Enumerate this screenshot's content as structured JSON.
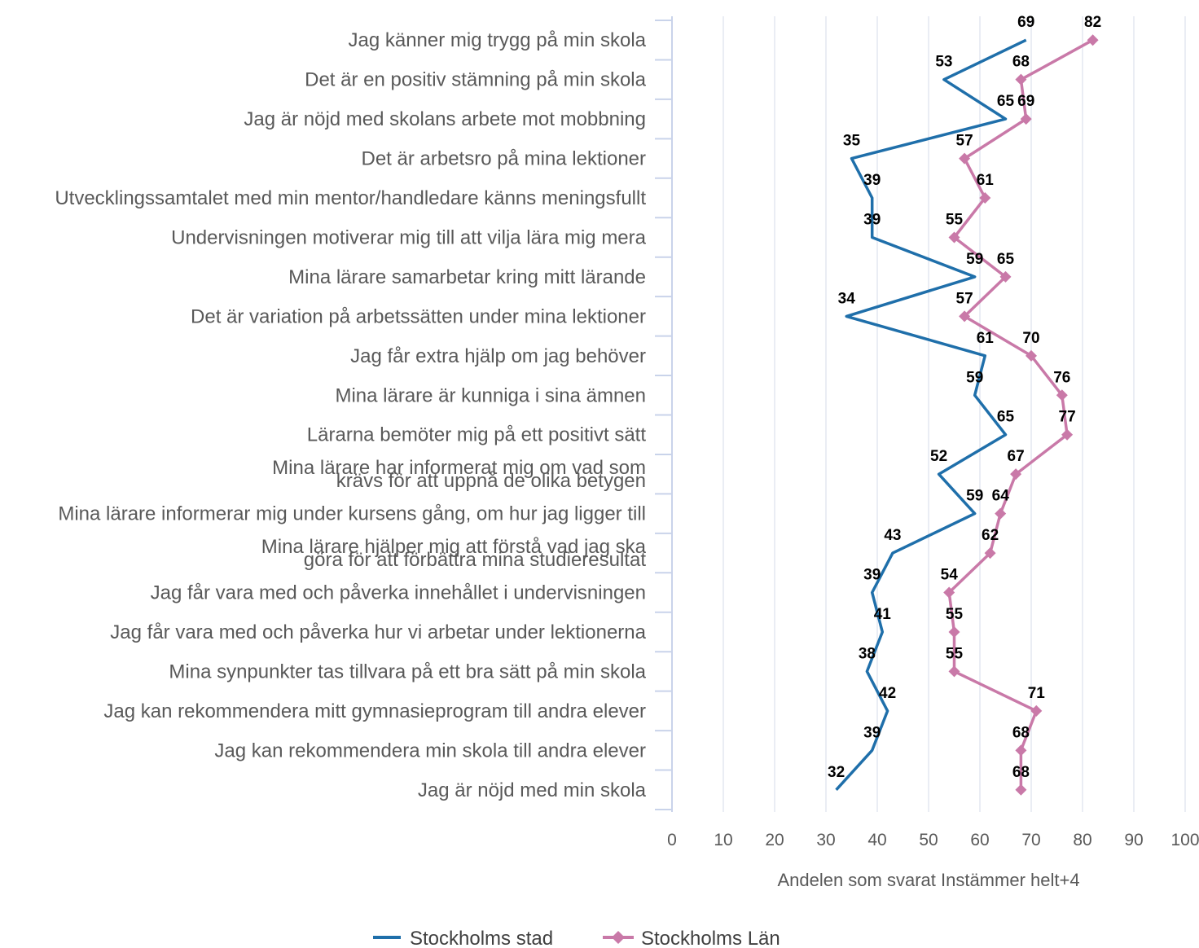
{
  "chart_data": {
    "type": "line",
    "orientation": "horizontal",
    "categories": [
      "Jag känner mig trygg på min skola",
      "Det är en positiv stämning på min skola",
      "Jag är nöjd med skolans arbete mot mobbning",
      "Det är arbetsro på mina lektioner",
      "Utvecklingssamtalet med min mentor/handledare känns meningsfullt",
      "Undervisningen motiverar mig till att vilja lära mig mera",
      "Mina lärare samarbetar kring mitt lärande",
      "Det är variation på arbetssätten under mina lektioner",
      "Jag får extra hjälp om jag behöver",
      "Mina lärare är kunniga i sina ämnen",
      "Lärarna bemöter mig på ett positivt sätt",
      "Mina lärare har informerat mig om vad som krävs för att uppnå de olika betygen",
      "Mina lärare informerar mig under kursens gång, om hur jag ligger till",
      "Mina lärare hjälper mig att förstå vad jag ska göra för att förbättra mina studieresultat",
      "Jag får vara med och påverka innehållet i undervisningen",
      "Jag får vara med och påverka hur vi arbetar under lektionerna",
      "Mina synpunkter tas tillvara på ett bra sätt på min skola",
      "Jag kan rekommendera mitt gymnasieprogram till andra elever",
      "Jag kan rekommendera min skola till andra elever",
      "Jag är nöjd med min skola"
    ],
    "category_lines": [
      [
        "Jag känner mig trygg på min skola"
      ],
      [
        "Det är en positiv stämning på min skola"
      ],
      [
        "Jag är nöjd med skolans arbete mot mobbning"
      ],
      [
        "Det är arbetsro på mina lektioner"
      ],
      [
        "Utvecklingssamtalet med min mentor/handledare känns meningsfullt"
      ],
      [
        "Undervisningen motiverar mig till att vilja lära mig mera"
      ],
      [
        "Mina lärare samarbetar kring mitt lärande"
      ],
      [
        "Det är variation på arbetssätten under mina lektioner"
      ],
      [
        "Jag får extra hjälp om jag behöver"
      ],
      [
        "Mina lärare är kunniga i sina ämnen"
      ],
      [
        "Lärarna bemöter mig på ett positivt sätt"
      ],
      [
        "Mina lärare har informerat mig om vad som",
        "krävs för att uppnå de olika betygen"
      ],
      [
        "Mina lärare informerar mig under kursens gång, om hur jag ligger till"
      ],
      [
        "Mina lärare hjälper mig att förstå vad jag ska",
        "göra för att förbättra mina studieresultat"
      ],
      [
        "Jag får vara med och påverka innehållet i undervisningen"
      ],
      [
        "Jag får vara med och påverka hur vi arbetar under lektionerna"
      ],
      [
        "Mina synpunkter tas tillvara på ett bra sätt på min skola"
      ],
      [
        "Jag kan rekommendera mitt gymnasieprogram till andra elever"
      ],
      [
        "Jag kan rekommendera min skola till andra elever"
      ],
      [
        "Jag är nöjd med min skola"
      ]
    ],
    "series": [
      {
        "name": "Stockholms stad",
        "color": "#1f6faa",
        "marker": "none",
        "values": [
          69,
          53,
          65,
          35,
          39,
          39,
          59,
          34,
          61,
          59,
          65,
          52,
          59,
          43,
          39,
          41,
          38,
          42,
          39,
          32
        ]
      },
      {
        "name": "Stockholms Län",
        "color": "#c979a8",
        "marker": "diamond",
        "values": [
          82,
          68,
          69,
          57,
          61,
          55,
          65,
          57,
          70,
          76,
          77,
          67,
          64,
          62,
          54,
          55,
          55,
          71,
          68,
          68
        ]
      }
    ],
    "xlabel": "Andelen som svarat Instämmer helt+4",
    "xlim": [
      0,
      100
    ],
    "xticks": [
      0,
      10,
      20,
      30,
      40,
      50,
      60,
      70,
      80,
      90,
      100
    ],
    "grid": true,
    "legend_position": "bottom"
  }
}
